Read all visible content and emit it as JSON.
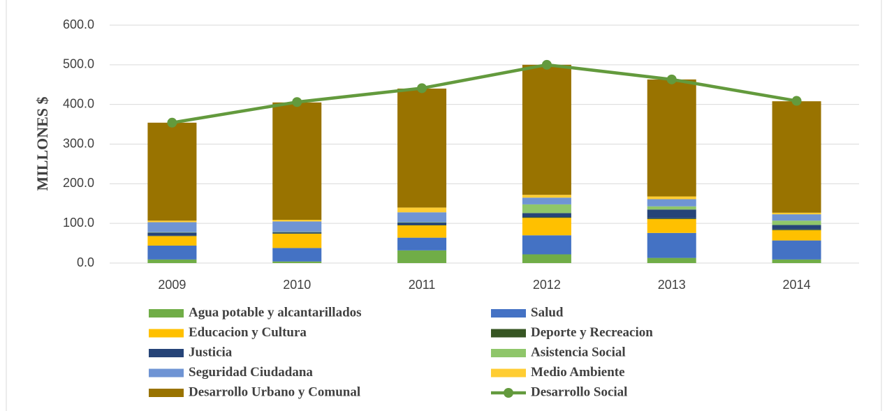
{
  "chart_data": {
    "type": "bar",
    "stacked": true,
    "y_label": "MILLONES $",
    "categories": [
      "2009",
      "2010",
      "2011",
      "2012",
      "2013",
      "2014"
    ],
    "ylim": [
      0,
      600
    ],
    "yticks": [
      {
        "value": 0,
        "label": "0.0"
      },
      {
        "value": 100,
        "label": "100.0"
      },
      {
        "value": 200,
        "label": "200.0"
      },
      {
        "value": 300,
        "label": "300.0"
      },
      {
        "value": 400,
        "label": "400.0"
      },
      {
        "value": 500,
        "label": "500.0"
      },
      {
        "value": 600,
        "label": "600.0"
      }
    ],
    "grid": true,
    "series": [
      {
        "name": "Agua potable y alcantarillados",
        "color": "#70ad47",
        "values": [
          9,
          4,
          32,
          22,
          13,
          9
        ]
      },
      {
        "name": "Salud",
        "color": "#4472c4",
        "values": [
          35,
          34,
          32,
          48,
          63,
          48
        ]
      },
      {
        "name": "Educacion y Cultura",
        "color": "#ffc000",
        "values": [
          24,
          36,
          31,
          44,
          35,
          26
        ]
      },
      {
        "name": "Deporte y Recreacion",
        "color": "#375623",
        "values": [
          1,
          1,
          1,
          2,
          2,
          2
        ]
      },
      {
        "name": "Justicia",
        "color": "#264478",
        "values": [
          8,
          3,
          6,
          10,
          22,
          11
        ]
      },
      {
        "name": "Asistencia Social",
        "color": "#8fc66a",
        "values": [
          1,
          1,
          1,
          22,
          8,
          11
        ]
      },
      {
        "name": "Seguridad Ciudadana",
        "color": "#6f94d4",
        "values": [
          25,
          26,
          25,
          17,
          18,
          16
        ]
      },
      {
        "name": "Medio Ambiente",
        "color": "#ffcd33",
        "values": [
          4,
          4,
          12,
          7,
          7,
          4
        ]
      },
      {
        "name": "Desarrollo Urbano y Comunal",
        "color": "#997300",
        "values": [
          247,
          296,
          300,
          328,
          295,
          281
        ]
      },
      {
        "name": "Desarrollo Social",
        "color": "#639a3d",
        "type": "line",
        "values": [
          354,
          406,
          441,
          500,
          463,
          409
        ]
      }
    ]
  }
}
